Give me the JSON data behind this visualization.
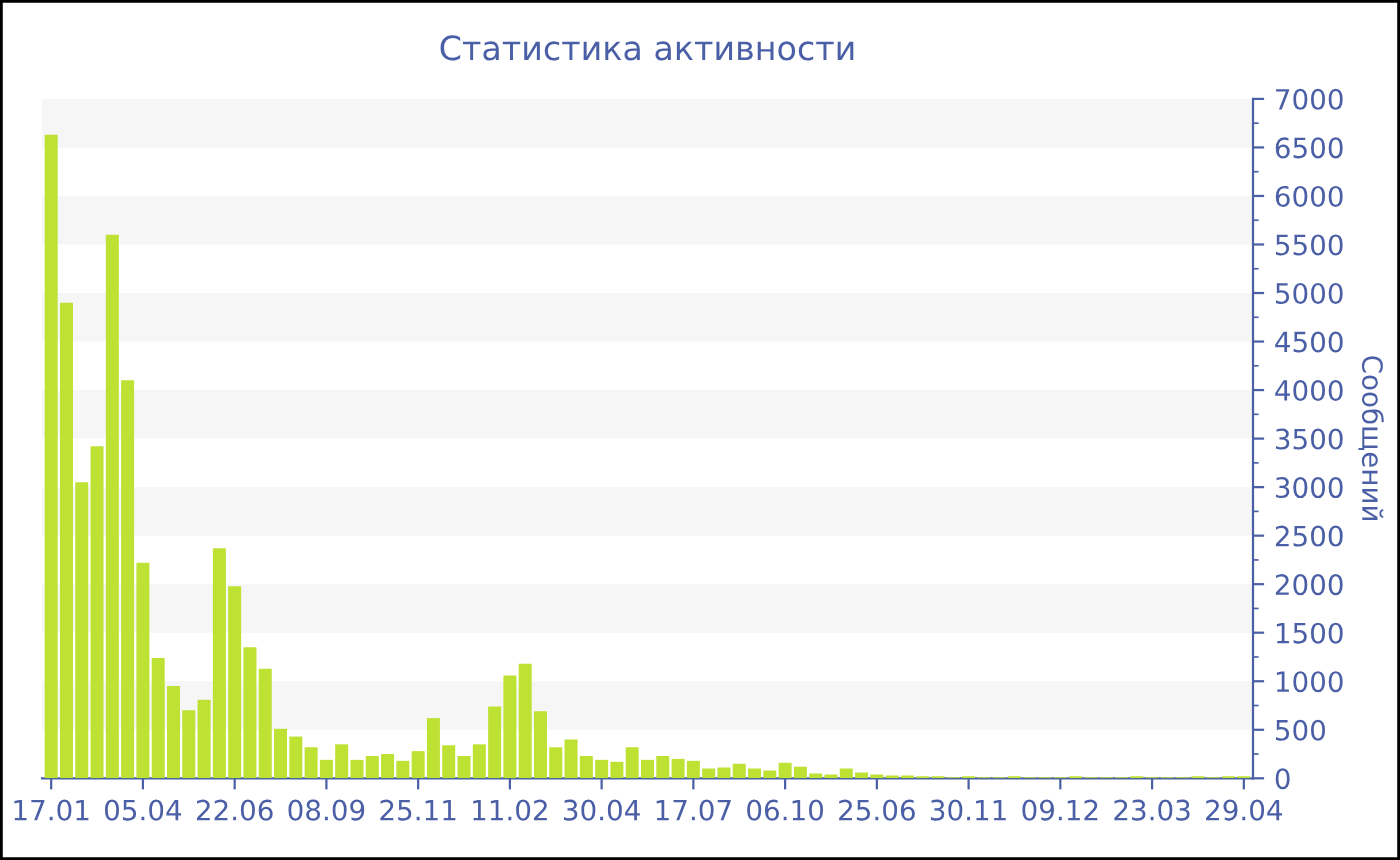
{
  "chart_data": {
    "type": "bar",
    "title": "Статистика активности",
    "ylabel": "Сообщений",
    "categories": [
      "17.01",
      null,
      null,
      null,
      null,
      null,
      "05.04",
      null,
      null,
      null,
      null,
      null,
      "22.06",
      null,
      null,
      null,
      null,
      null,
      "08.09",
      null,
      null,
      null,
      null,
      null,
      "25.11",
      null,
      null,
      null,
      null,
      null,
      "11.02",
      null,
      null,
      null,
      null,
      null,
      "30.04",
      null,
      null,
      null,
      null,
      null,
      "17.07",
      null,
      null,
      null,
      null,
      null,
      "06.10",
      null,
      null,
      null,
      null,
      null,
      "25.06",
      null,
      null,
      null,
      null,
      null,
      "30.11",
      null,
      null,
      null,
      null,
      null,
      "09.12",
      null,
      null,
      null,
      null,
      null,
      "23.03",
      null,
      null,
      null,
      null,
      null,
      "29.04"
    ],
    "values": [
      6630,
      4900,
      3050,
      3420,
      5600,
      4100,
      2220,
      1240,
      950,
      700,
      810,
      2370,
      1980,
      1350,
      1130,
      510,
      430,
      320,
      190,
      350,
      190,
      230,
      250,
      180,
      280,
      620,
      340,
      230,
      350,
      740,
      1060,
      1180,
      690,
      320,
      400,
      230,
      190,
      170,
      320,
      190,
      230,
      200,
      180,
      100,
      110,
      150,
      100,
      80,
      160,
      120,
      50,
      40,
      100,
      60,
      40,
      30,
      30,
      20,
      20,
      10,
      20,
      10,
      10,
      20,
      10,
      10,
      10,
      20,
      10,
      10,
      10,
      20,
      10,
      10,
      10,
      20,
      10,
      20,
      20
    ],
    "color": "#bde234",
    "ylim": [
      0,
      7000
    ],
    "yticks": [
      0,
      500,
      1000,
      1500,
      2000,
      2500,
      3000,
      3500,
      4000,
      4500,
      5000,
      5500,
      6000,
      6500,
      7000
    ]
  }
}
